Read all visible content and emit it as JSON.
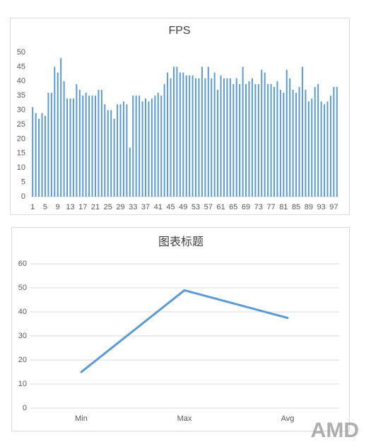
{
  "chart_data": [
    {
      "type": "bar",
      "title": "FPS",
      "categories": [
        1,
        null,
        null,
        null,
        5,
        null,
        null,
        null,
        9,
        null,
        null,
        null,
        13,
        null,
        null,
        null,
        17,
        null,
        null,
        null,
        21,
        null,
        null,
        null,
        25,
        null,
        null,
        null,
        29,
        null,
        null,
        null,
        33,
        null,
        null,
        null,
        37,
        null,
        null,
        null,
        41,
        null,
        null,
        null,
        45,
        null,
        null,
        null,
        49,
        null,
        null,
        null,
        53,
        null,
        null,
        null,
        57,
        null,
        null,
        null,
        61,
        null,
        null,
        null,
        65,
        null,
        null,
        null,
        69,
        null,
        null,
        null,
        73,
        null,
        null,
        null,
        77,
        null,
        null,
        null,
        81,
        null,
        null,
        null,
        85,
        null,
        null,
        null,
        89,
        null,
        null,
        null,
        93,
        null,
        null,
        null,
        97,
        null
      ],
      "values": [
        31,
        29,
        27,
        29,
        28,
        36,
        36,
        45,
        43,
        48,
        40,
        34,
        34,
        34,
        39,
        37,
        35,
        36,
        35,
        35,
        35,
        37,
        37,
        32,
        30,
        30,
        27,
        32,
        32,
        33,
        32,
        17,
        35,
        35,
        35,
        33,
        34,
        33,
        34,
        35,
        36,
        35,
        39,
        43,
        41,
        45,
        45,
        43,
        43,
        42,
        42,
        42,
        41,
        41,
        45,
        41,
        45,
        41,
        43,
        37,
        42,
        41,
        41,
        41,
        39,
        41,
        39,
        45,
        39,
        40,
        41,
        39,
        39,
        44,
        43,
        39,
        39,
        38,
        40,
        37,
        36,
        44,
        41,
        37,
        36,
        38,
        45,
        37,
        33,
        34,
        38,
        39,
        33,
        32,
        33,
        35,
        38,
        38
      ],
      "color": "#5b9bd5",
      "ylim": [
        0,
        50
      ],
      "yticks": [
        0,
        5,
        10,
        15,
        20,
        25,
        30,
        35,
        40,
        45,
        50
      ],
      "grid": false
    },
    {
      "type": "line",
      "title": "图表标题",
      "categories": [
        "Min",
        "Max",
        "Avg"
      ],
      "values": [
        15,
        49,
        37.5
      ],
      "color": "#5b9bd5",
      "ylim": [
        0,
        60
      ],
      "yticks": [
        0,
        10,
        20,
        30,
        40,
        50,
        60
      ],
      "grid": true
    }
  ],
  "watermark": "AMD"
}
